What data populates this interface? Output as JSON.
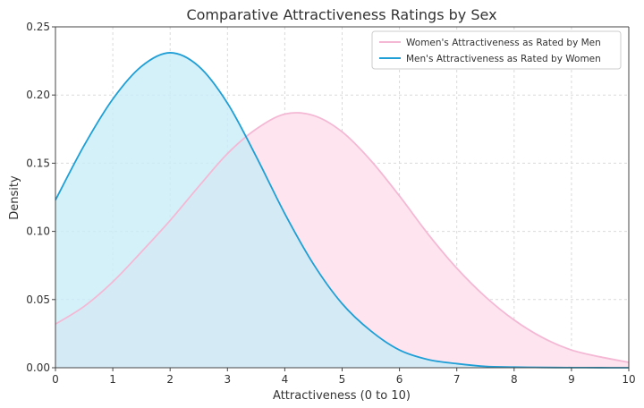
{
  "chart_data": {
    "type": "area",
    "title": "Comparative Attractiveness Ratings by Sex",
    "xlabel": "Attractiveness (0 to 10)",
    "ylabel": "Density",
    "xlim": [
      0,
      10
    ],
    "ylim": [
      0,
      0.25
    ],
    "x_ticks": [
      "0",
      "1",
      "2",
      "3",
      "4",
      "5",
      "6",
      "7",
      "8",
      "9",
      "10"
    ],
    "y_ticks": [
      "0.00",
      "0.05",
      "0.10",
      "0.15",
      "0.20",
      "0.25"
    ],
    "grid": true,
    "legend_position": "top-right",
    "x": [
      0,
      0.5,
      1,
      1.5,
      2,
      2.5,
      3,
      3.5,
      4,
      4.5,
      5,
      5.5,
      6,
      6.5,
      7,
      7.5,
      8,
      8.5,
      9,
      9.5,
      10
    ],
    "series": [
      {
        "name": "Women's Attractiveness as Rated by Men",
        "color": "#f4b8d4",
        "fill": "#fde4ef",
        "values": [
          0.032,
          0.045,
          0.063,
          0.085,
          0.108,
          0.133,
          0.157,
          0.175,
          0.186,
          0.185,
          0.173,
          0.152,
          0.126,
          0.098,
          0.073,
          0.052,
          0.035,
          0.022,
          0.013,
          0.008,
          0.004
        ]
      },
      {
        "name": "Men's Attractiveness as Rated by Women",
        "color": "#1f9fd6",
        "fill": "#c9ecf8",
        "values": [
          0.123,
          0.163,
          0.197,
          0.221,
          0.231,
          0.221,
          0.194,
          0.155,
          0.113,
          0.076,
          0.047,
          0.027,
          0.013,
          0.006,
          0.003,
          0.001,
          0.0005,
          0.0002,
          0.0001,
          3e-05,
          1e-05
        ]
      }
    ]
  }
}
